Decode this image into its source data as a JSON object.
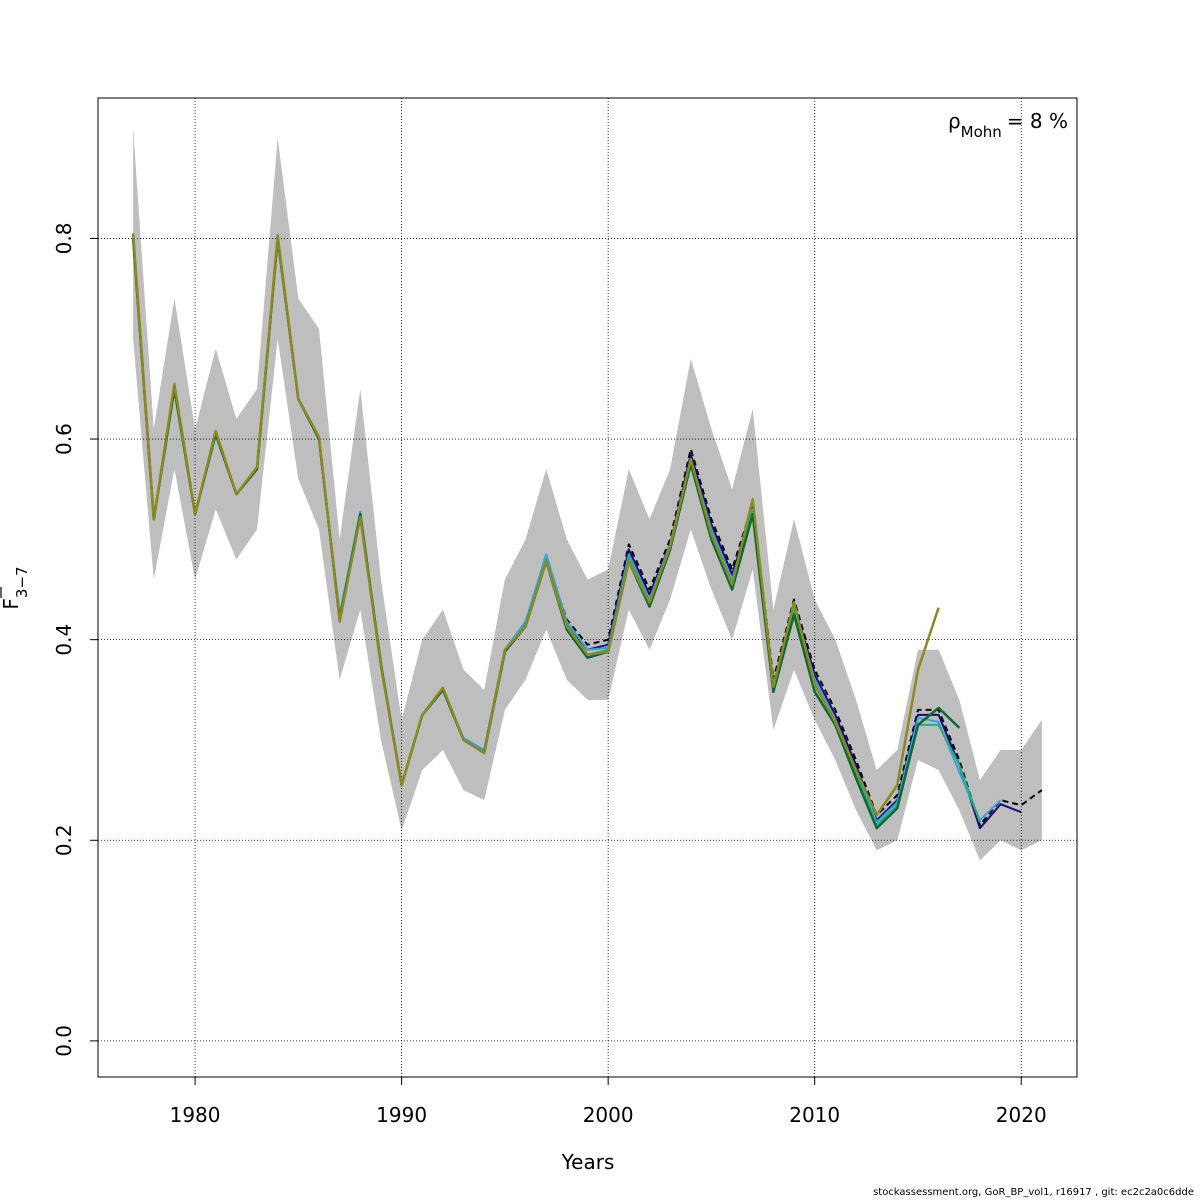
{
  "chart_data": {
    "type": "line",
    "xlabel": "Years",
    "ylabel": {
      "main": "F",
      "subscript": "3−7",
      "overbar": true
    },
    "annotation": {
      "symbol": "ρ",
      "subscript": "Mohn",
      "text": "= 8 %"
    },
    "x_ticks": [
      1980,
      1990,
      2000,
      2010,
      2020
    ],
    "y_ticks": [
      "0.0",
      "0.2",
      "0.4",
      "0.6",
      "0.8"
    ],
    "xlim": [
      1975.3,
      2022.7
    ],
    "ylim": [
      -0.036,
      0.94
    ],
    "grid": true,
    "confidence_band": {
      "x": [
        1977,
        1978,
        1979,
        1980,
        1981,
        1982,
        1983,
        1984,
        1985,
        1986,
        1987,
        1988,
        1989,
        1990,
        1991,
        1992,
        1993,
        1994,
        1995,
        1996,
        1997,
        1998,
        1999,
        2000,
        2001,
        2002,
        2003,
        2004,
        2005,
        2006,
        2007,
        2008,
        2009,
        2010,
        2011,
        2012,
        2013,
        2014,
        2015,
        2016,
        2017,
        2018,
        2019,
        2020,
        2021
      ],
      "lower": [
        0.7,
        0.46,
        0.57,
        0.46,
        0.53,
        0.48,
        0.51,
        0.7,
        0.56,
        0.51,
        0.36,
        0.43,
        0.3,
        0.21,
        0.27,
        0.29,
        0.25,
        0.24,
        0.33,
        0.36,
        0.41,
        0.36,
        0.34,
        0.34,
        0.43,
        0.39,
        0.44,
        0.51,
        0.45,
        0.4,
        0.47,
        0.31,
        0.37,
        0.32,
        0.28,
        0.23,
        0.19,
        0.2,
        0.28,
        0.27,
        0.23,
        0.18,
        0.2,
        0.19,
        0.2
      ],
      "upper": [
        0.91,
        0.61,
        0.74,
        0.61,
        0.69,
        0.62,
        0.65,
        0.9,
        0.74,
        0.71,
        0.5,
        0.65,
        0.46,
        0.32,
        0.4,
        0.43,
        0.37,
        0.35,
        0.46,
        0.5,
        0.57,
        0.5,
        0.46,
        0.47,
        0.57,
        0.52,
        0.57,
        0.68,
        0.61,
        0.55,
        0.63,
        0.43,
        0.52,
        0.44,
        0.4,
        0.34,
        0.27,
        0.29,
        0.39,
        0.39,
        0.34,
        0.26,
        0.29,
        0.29,
        0.32
      ]
    },
    "series": [
      {
        "color": "#000000",
        "dashed": true,
        "width": 2,
        "x": [
          1977,
          1978,
          1979,
          1980,
          1981,
          1982,
          1983,
          1984,
          1985,
          1986,
          1987,
          1988,
          1989,
          1990,
          1991,
          1992,
          1993,
          1994,
          1995,
          1996,
          1997,
          1998,
          1999,
          2000,
          2001,
          2002,
          2003,
          2004,
          2005,
          2006,
          2007,
          2008,
          2009,
          2010,
          2011,
          2012,
          2013,
          2014,
          2015,
          2016,
          2017,
          2018,
          2019,
          2020,
          2021
        ],
        "y": [
          0.8,
          0.52,
          0.65,
          0.525,
          0.605,
          0.545,
          0.57,
          0.8,
          0.64,
          0.6,
          0.42,
          0.525,
          0.375,
          0.255,
          0.325,
          0.35,
          0.3,
          0.29,
          0.39,
          0.415,
          0.48,
          0.42,
          0.395,
          0.4,
          0.495,
          0.45,
          0.5,
          0.59,
          0.52,
          0.47,
          0.535,
          0.36,
          0.44,
          0.37,
          0.33,
          0.28,
          0.225,
          0.245,
          0.33,
          0.33,
          0.28,
          0.215,
          0.24,
          0.235,
          0.25
        ]
      },
      {
        "color": "#1a0a7a",
        "dashed": false,
        "width": 2,
        "x": [
          1977,
          1978,
          1979,
          1980,
          1981,
          1982,
          1983,
          1984,
          1985,
          1986,
          1987,
          1988,
          1989,
          1990,
          1991,
          1992,
          1993,
          1994,
          1995,
          1996,
          1997,
          1998,
          1999,
          2000,
          2001,
          2002,
          2003,
          2004,
          2005,
          2006,
          2007,
          2008,
          2009,
          2010,
          2011,
          2012,
          2013,
          2014,
          2015,
          2016,
          2017,
          2018,
          2019,
          2020
        ],
        "y": [
          0.8,
          0.52,
          0.65,
          0.525,
          0.605,
          0.545,
          0.57,
          0.8,
          0.64,
          0.6,
          0.42,
          0.525,
          0.375,
          0.255,
          0.325,
          0.35,
          0.3,
          0.29,
          0.39,
          0.415,
          0.48,
          0.415,
          0.39,
          0.395,
          0.49,
          0.445,
          0.495,
          0.585,
          0.515,
          0.465,
          0.53,
          0.355,
          0.435,
          0.365,
          0.325,
          0.275,
          0.22,
          0.24,
          0.325,
          0.325,
          0.275,
          0.212,
          0.236,
          0.228
        ]
      },
      {
        "color": "#3aa0e0",
        "dashed": false,
        "width": 2,
        "x": [
          1977,
          1978,
          1979,
          1980,
          1981,
          1982,
          1983,
          1984,
          1985,
          1986,
          1987,
          1988,
          1989,
          1990,
          1991,
          1992,
          1993,
          1994,
          1995,
          1996,
          1997,
          1998,
          1999,
          2000,
          2001,
          2002,
          2003,
          2004,
          2005,
          2006,
          2007,
          2008,
          2009,
          2010,
          2011,
          2012,
          2013,
          2014,
          2015,
          2016,
          2017,
          2018,
          2019
        ],
        "y": [
          0.8,
          0.52,
          0.65,
          0.525,
          0.605,
          0.545,
          0.57,
          0.8,
          0.64,
          0.6,
          0.425,
          0.528,
          0.375,
          0.255,
          0.325,
          0.35,
          0.302,
          0.29,
          0.39,
          0.418,
          0.485,
          0.418,
          0.39,
          0.392,
          0.485,
          0.44,
          0.495,
          0.58,
          0.51,
          0.46,
          0.53,
          0.355,
          0.432,
          0.36,
          0.32,
          0.27,
          0.218,
          0.238,
          0.322,
          0.318,
          0.268,
          0.22,
          0.24
        ]
      },
      {
        "color": "#20b080",
        "dashed": false,
        "width": 2,
        "x": [
          1977,
          1978,
          1979,
          1980,
          1981,
          1982,
          1983,
          1984,
          1985,
          1986,
          1987,
          1988,
          1989,
          1990,
          1991,
          1992,
          1993,
          1994,
          1995,
          1996,
          1997,
          1998,
          1999,
          2000,
          2001,
          2002,
          2003,
          2004,
          2005,
          2006,
          2007,
          2008,
          2009,
          2010,
          2011,
          2012,
          2013,
          2014,
          2015,
          2016,
          2017,
          2018
        ],
        "y": [
          0.8,
          0.52,
          0.65,
          0.525,
          0.605,
          0.545,
          0.57,
          0.8,
          0.64,
          0.6,
          0.42,
          0.525,
          0.375,
          0.255,
          0.325,
          0.35,
          0.3,
          0.288,
          0.388,
          0.415,
          0.48,
          0.415,
          0.385,
          0.39,
          0.482,
          0.438,
          0.492,
          0.578,
          0.505,
          0.455,
          0.528,
          0.352,
          0.428,
          0.355,
          0.318,
          0.265,
          0.215,
          0.235,
          0.315,
          0.315,
          0.275,
          0.218
        ]
      },
      {
        "color": "#0a6a30",
        "dashed": false,
        "width": 2.5,
        "x": [
          1977,
          1978,
          1979,
          1980,
          1981,
          1982,
          1983,
          1984,
          1985,
          1986,
          1987,
          1988,
          1989,
          1990,
          1991,
          1992,
          1993,
          1994,
          1995,
          1996,
          1997,
          1998,
          1999,
          2000,
          2001,
          2002,
          2003,
          2004,
          2005,
          2006,
          2007,
          2008,
          2009,
          2010,
          2011,
          2012,
          2013,
          2014,
          2015,
          2016,
          2017
        ],
        "y": [
          0.8,
          0.52,
          0.65,
          0.525,
          0.605,
          0.545,
          0.57,
          0.8,
          0.64,
          0.6,
          0.42,
          0.525,
          0.375,
          0.255,
          0.325,
          0.35,
          0.3,
          0.287,
          0.388,
          0.413,
          0.478,
          0.41,
          0.382,
          0.388,
          0.478,
          0.433,
          0.49,
          0.575,
          0.5,
          0.45,
          0.525,
          0.348,
          0.425,
          0.348,
          0.315,
          0.262,
          0.212,
          0.232,
          0.315,
          0.332,
          0.312
        ]
      },
      {
        "color": "#8a8a20",
        "dashed": false,
        "width": 2.5,
        "x": [
          1977,
          1978,
          1979,
          1980,
          1981,
          1982,
          1983,
          1984,
          1985,
          1986,
          1987,
          1988,
          1989,
          1990,
          1991,
          1992,
          1993,
          1994,
          1995,
          1996,
          1997,
          1998,
          1999,
          2000,
          2001,
          2002,
          2003,
          2004,
          2005,
          2006,
          2007,
          2008,
          2009,
          2010,
          2011,
          2012,
          2013,
          2014,
          2015,
          2016
        ],
        "y": [
          0.805,
          0.52,
          0.655,
          0.525,
          0.608,
          0.545,
          0.572,
          0.803,
          0.64,
          0.602,
          0.418,
          0.522,
          0.373,
          0.255,
          0.325,
          0.352,
          0.3,
          0.287,
          0.39,
          0.413,
          0.478,
          0.413,
          0.385,
          0.388,
          0.478,
          0.437,
          0.493,
          0.58,
          0.505,
          0.455,
          0.54,
          0.353,
          0.437,
          0.355,
          0.318,
          0.27,
          0.225,
          0.255,
          0.37,
          0.432
        ]
      }
    ]
  },
  "footer": "stockassessment.org, GoR_BP_vol1, r16917 , git: ec2c2a0c6dde"
}
